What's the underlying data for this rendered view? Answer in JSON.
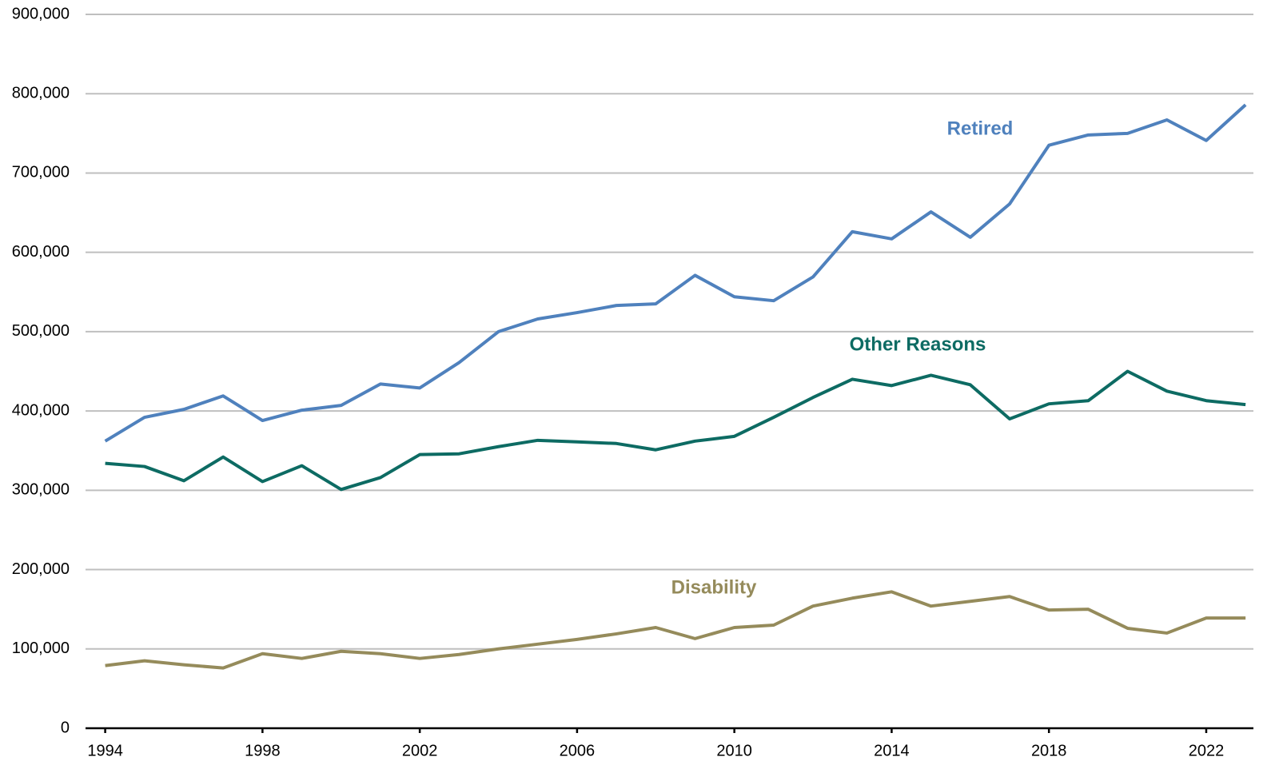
{
  "chart_data": {
    "type": "line",
    "x": [
      1994,
      1995,
      1996,
      1997,
      1998,
      1999,
      2000,
      2001,
      2002,
      2003,
      2004,
      2005,
      2006,
      2007,
      2008,
      2009,
      2010,
      2011,
      2012,
      2013,
      2014,
      2015,
      2016,
      2017,
      2018,
      2019,
      2020,
      2021,
      2022,
      2023
    ],
    "series": [
      {
        "name": "Retired",
        "color": "#4f81bd",
        "values": [
          362000,
          392000,
          402000,
          419000,
          388000,
          401000,
          407000,
          434000,
          429000,
          461000,
          500000,
          516000,
          524000,
          533000,
          535000,
          571000,
          544000,
          539000,
          569000,
          626000,
          617000,
          651000,
          619000,
          661000,
          735000,
          748000,
          750000,
          767000,
          741000,
          786000
        ]
      },
      {
        "name": "Other Reasons",
        "color": "#0d6b63",
        "values": [
          334000,
          330000,
          312000,
          342000,
          311000,
          331000,
          301000,
          316000,
          345000,
          346000,
          355000,
          363000,
          361000,
          359000,
          351000,
          362000,
          368000,
          392000,
          417000,
          440000,
          432000,
          445000,
          433000,
          390000,
          409000,
          413000,
          450000,
          425000,
          413000,
          408000
        ]
      },
      {
        "name": "Disability",
        "color": "#958b5b",
        "values": [
          79000,
          85000,
          80000,
          76000,
          94000,
          88000,
          97000,
          94000,
          88000,
          93000,
          100000,
          106000,
          112000,
          119000,
          127000,
          113000,
          127000,
          130000,
          154000,
          164000,
          172000,
          154000,
          160000,
          166000,
          149000,
          150000,
          126000,
          120000,
          139000,
          139000
        ]
      }
    ],
    "xlim": [
      1993.5,
      2023.2
    ],
    "xticks": [
      1994,
      1998,
      2002,
      2006,
      2010,
      2014,
      2018,
      2022
    ],
    "ylim": [
      0,
      900000
    ],
    "yticks": [
      0,
      {
        "value": 100000,
        "label": "100,000"
      },
      {
        "value": 200000,
        "label": "200,000"
      },
      {
        "value": 300000,
        "label": "300,000"
      },
      {
        "value": 400000,
        "label": "400,000"
      },
      {
        "value": 500000,
        "label": "500,000"
      },
      {
        "value": 600000,
        "label": "600,000"
      },
      {
        "value": 700000,
        "label": "700,000"
      },
      {
        "value": 800000,
        "label": "800,000"
      },
      {
        "value": 900000,
        "label": "900,000"
      }
    ],
    "grid": true
  }
}
